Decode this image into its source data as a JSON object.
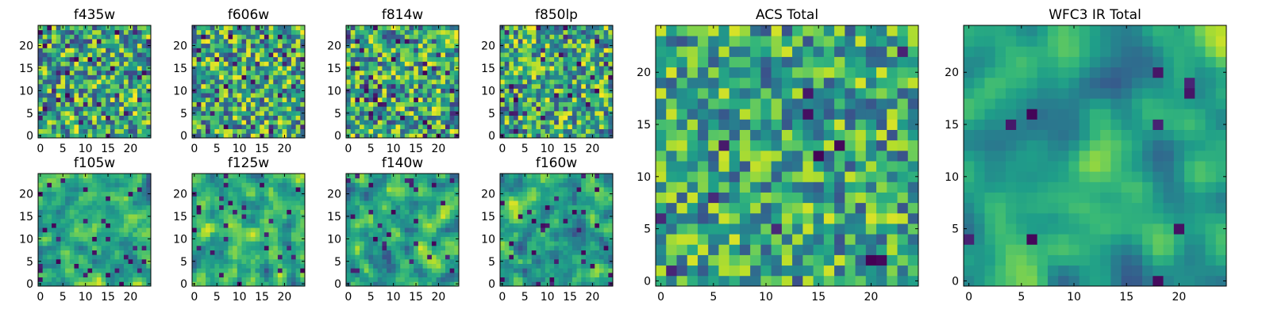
{
  "colormap": "viridis",
  "colors": {
    "viridis_low": "#440154",
    "viridis_mid": "#21918c",
    "viridis_high": "#fde725",
    "frame": "#000000"
  },
  "chart_data": [
    {
      "type": "heatmap",
      "title": "f435w",
      "grid_size": 25,
      "xlim": [
        0,
        24
      ],
      "ylim": [
        0,
        24
      ],
      "xticks": [
        0,
        5,
        10,
        15,
        20
      ],
      "yticks": [
        0,
        5,
        10,
        15,
        20
      ],
      "seed": 11,
      "smooth": 0,
      "noise": 0.55,
      "dark_frac": 0.05
    },
    {
      "type": "heatmap",
      "title": "f606w",
      "grid_size": 25,
      "xlim": [
        0,
        24
      ],
      "ylim": [
        0,
        24
      ],
      "xticks": [
        0,
        5,
        10,
        15,
        20
      ],
      "yticks": [
        0,
        5,
        10,
        15,
        20
      ],
      "seed": 23,
      "smooth": 0,
      "noise": 0.55,
      "dark_frac": 0.05
    },
    {
      "type": "heatmap",
      "title": "f814w",
      "grid_size": 25,
      "xlim": [
        0,
        24
      ],
      "ylim": [
        0,
        24
      ],
      "xticks": [
        0,
        5,
        10,
        15,
        20
      ],
      "yticks": [
        0,
        5,
        10,
        15,
        20
      ],
      "seed": 37,
      "smooth": 0,
      "noise": 0.55,
      "dark_frac": 0.06
    },
    {
      "type": "heatmap",
      "title": "f850lp",
      "grid_size": 25,
      "xlim": [
        0,
        24
      ],
      "ylim": [
        0,
        24
      ],
      "xticks": [
        0,
        5,
        10,
        15,
        20
      ],
      "yticks": [
        0,
        5,
        10,
        15,
        20
      ],
      "seed": 41,
      "smooth": 0,
      "noise": 0.55,
      "dark_frac": 0.06
    },
    {
      "type": "heatmap",
      "title": "f105w",
      "grid_size": 25,
      "xlim": [
        0,
        24
      ],
      "ylim": [
        0,
        24
      ],
      "xticks": [
        0,
        5,
        10,
        15,
        20
      ],
      "yticks": [
        0,
        5,
        10,
        15,
        20
      ],
      "seed": 53,
      "smooth": 1,
      "noise": 0.35,
      "dark_frac": 0.04
    },
    {
      "type": "heatmap",
      "title": "f125w",
      "grid_size": 25,
      "xlim": [
        0,
        24
      ],
      "ylim": [
        0,
        24
      ],
      "xticks": [
        0,
        5,
        10,
        15,
        20
      ],
      "yticks": [
        0,
        5,
        10,
        15,
        20
      ],
      "seed": 67,
      "smooth": 1,
      "noise": 0.35,
      "dark_frac": 0.04
    },
    {
      "type": "heatmap",
      "title": "f140w",
      "grid_size": 25,
      "xlim": [
        0,
        24
      ],
      "ylim": [
        0,
        24
      ],
      "xticks": [
        0,
        5,
        10,
        15,
        20
      ],
      "yticks": [
        0,
        5,
        10,
        15,
        20
      ],
      "seed": 79,
      "smooth": 1,
      "noise": 0.35,
      "dark_frac": 0.04
    },
    {
      "type": "heatmap",
      "title": "f160w",
      "grid_size": 25,
      "xlim": [
        0,
        24
      ],
      "ylim": [
        0,
        24
      ],
      "xticks": [
        0,
        5,
        10,
        15,
        20
      ],
      "yticks": [
        0,
        5,
        10,
        15,
        20
      ],
      "seed": 83,
      "smooth": 1,
      "noise": 0.35,
      "dark_frac": 0.04
    },
    {
      "type": "heatmap",
      "title": "ACS Total",
      "grid_size": 25,
      "xlim": [
        0,
        24
      ],
      "ylim": [
        0,
        24
      ],
      "xticks": [
        0,
        5,
        10,
        15,
        20
      ],
      "yticks": [
        0,
        5,
        10,
        15,
        20
      ],
      "seed": 97,
      "smooth": 0,
      "noise": 0.35,
      "dark_frac": 0.025
    },
    {
      "type": "heatmap",
      "title": "WFC3 IR Total",
      "grid_size": 25,
      "xlim": [
        0,
        24
      ],
      "ylim": [
        0,
        24
      ],
      "xticks": [
        0,
        5,
        10,
        15,
        20
      ],
      "yticks": [
        0,
        5,
        10,
        15,
        20
      ],
      "seed": 101,
      "smooth": 2,
      "noise": 0.25,
      "dark_frac": 0.025
    }
  ]
}
